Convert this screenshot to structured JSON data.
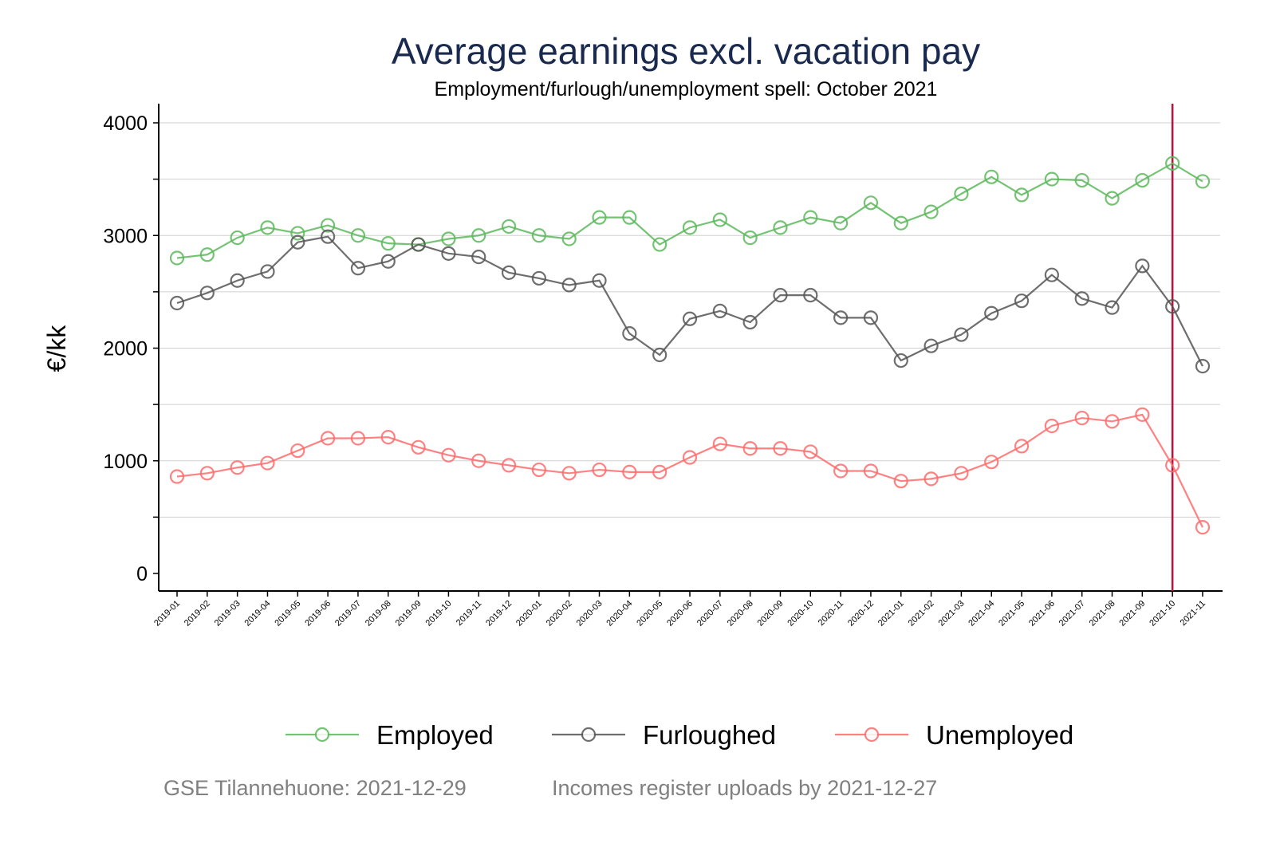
{
  "chart_data": {
    "type": "line",
    "title": "Average earnings excl. vacation pay",
    "subtitle": "Employment/furlough/unemployment spell: October 2021",
    "ylabel": "€/kk",
    "xlabel": "",
    "ylim": [
      0,
      4000
    ],
    "yticks": [
      0,
      1000,
      2000,
      3000,
      4000
    ],
    "grid": true,
    "legend_position": "bottom",
    "reference_line": {
      "x": "2021-10",
      "color": "#c0103a"
    },
    "x": [
      "2019-01",
      "2019-02",
      "2019-03",
      "2019-04",
      "2019-05",
      "2019-06",
      "2019-07",
      "2019-08",
      "2019-09",
      "2019-10",
      "2019-11",
      "2019-12",
      "2020-01",
      "2020-02",
      "2020-03",
      "2020-04",
      "2020-05",
      "2020-06",
      "2020-07",
      "2020-08",
      "2020-09",
      "2020-10",
      "2020-11",
      "2020-12",
      "2021-01",
      "2021-02",
      "2021-03",
      "2021-04",
      "2021-05",
      "2021-06",
      "2021-07",
      "2021-08",
      "2021-09",
      "2021-10",
      "2021-11"
    ],
    "series": [
      {
        "name": "Employed",
        "color": "#5cb85c",
        "values": [
          2800,
          2830,
          2980,
          3070,
          3020,
          3090,
          3000,
          2930,
          2920,
          2970,
          3000,
          3080,
          3000,
          2970,
          3160,
          3160,
          2920,
          3070,
          3140,
          2980,
          3070,
          3160,
          3110,
          3290,
          3110,
          3210,
          3370,
          3520,
          3360,
          3500,
          3490,
          3330,
          3490,
          3640,
          3480
        ]
      },
      {
        "name": "Furloughed",
        "color": "#555555",
        "values": [
          2400,
          2490,
          2600,
          2680,
          2940,
          2990,
          2710,
          2770,
          2920,
          2840,
          2810,
          2670,
          2620,
          2560,
          2600,
          2130,
          1940,
          2260,
          2330,
          2230,
          2470,
          2470,
          2270,
          2270,
          1890,
          2020,
          2120,
          2310,
          2420,
          2650,
          2440,
          2360,
          2730,
          2370,
          1840
        ]
      },
      {
        "name": "Unemployed",
        "color": "#ff6b6b",
        "values": [
          860,
          890,
          940,
          980,
          1090,
          1200,
          1200,
          1210,
          1120,
          1050,
          1000,
          960,
          920,
          890,
          920,
          900,
          900,
          1030,
          1150,
          1110,
          1110,
          1080,
          910,
          910,
          820,
          840,
          890,
          990,
          1130,
          1310,
          1380,
          1350,
          1410,
          960,
          410
        ]
      }
    ]
  },
  "footer": {
    "left": "GSE Tilannehuone: 2021-12-29",
    "right": "Incomes register uploads by 2021-12-27"
  }
}
